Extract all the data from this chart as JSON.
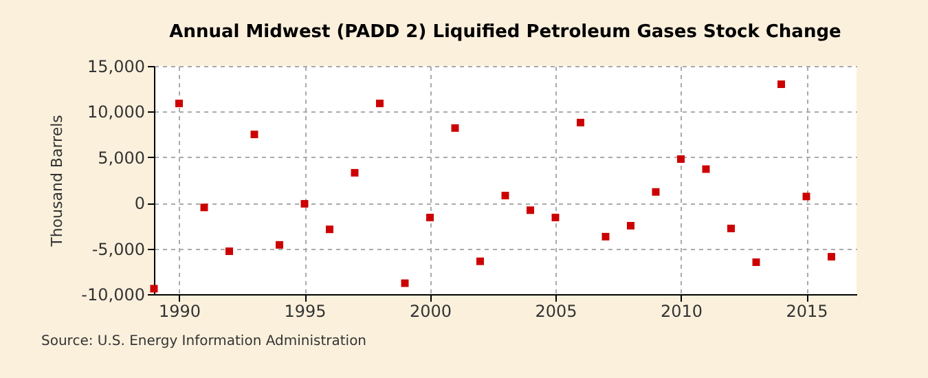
{
  "chart_data": {
    "type": "scatter",
    "title": "Annual Midwest (PADD 2) Liquified Petroleum Gases Stock Change",
    "ylabel": "Thousand Barrels",
    "annotations": [
      "Source: U.S. Energy Information Administration"
    ],
    "x": [
      1989,
      1990,
      1991,
      1992,
      1993,
      1994,
      1995,
      1996,
      1997,
      1998,
      1999,
      2000,
      2001,
      2002,
      2003,
      2004,
      2005,
      2006,
      2007,
      2008,
      2009,
      2010,
      2011,
      2012,
      2013,
      2014,
      2015,
      2016
    ],
    "series": [
      {
        "color": "#cc0000",
        "values": [
          -9400,
          10900,
          -500,
          -5300,
          7500,
          -4600,
          -100,
          -2900,
          3300,
          10900,
          -8800,
          -1600,
          8200,
          -6400,
          800,
          -800,
          -1600,
          8800,
          -3700,
          -2500,
          1200,
          4800,
          3700,
          -2800,
          -6500,
          13000,
          700,
          -5900
        ]
      }
    ],
    "xlim": [
      1989,
      2017
    ],
    "ylim": [
      -10000,
      15000
    ],
    "xticks": [
      1990,
      1995,
      2000,
      2005,
      2010,
      2015
    ],
    "yticks": [
      {
        "value": -10000,
        "label": "-10,000"
      },
      {
        "value": -5000,
        "label": "-5,000"
      },
      0,
      {
        "value": 5000,
        "label": "5,000"
      },
      {
        "value": 10000,
        "label": "10,000"
      },
      {
        "value": 15000,
        "label": "15,000"
      }
    ],
    "grid": true,
    "marker": "square"
  }
}
